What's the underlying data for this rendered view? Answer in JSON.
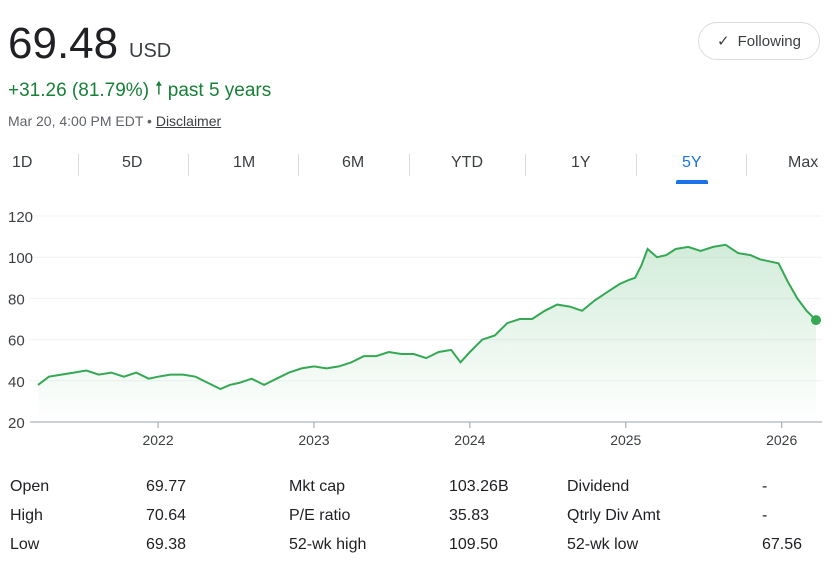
{
  "header": {
    "price": "69.48",
    "currency": "USD",
    "change": "+31.26 (81.79%)",
    "change_period": "past 5 years",
    "timestamp": "Mar 20, 4:00 PM EDT",
    "separator": "•",
    "disclaimer": "Disclaimer",
    "follow_label": "Following",
    "arrow_icon": "arrow-up-icon",
    "check_icon": "checkmark-icon",
    "accent_color": "#188038",
    "tab_accent_color": "#1a73e8"
  },
  "tabs": [
    {
      "label": "1D"
    },
    {
      "label": "5D"
    },
    {
      "label": "1M"
    },
    {
      "label": "6M"
    },
    {
      "label": "YTD"
    },
    {
      "label": "1Y"
    },
    {
      "label": "5Y",
      "active": true
    },
    {
      "label": "Max"
    }
  ],
  "chart_data": {
    "type": "area",
    "y_ticks": [
      "120",
      "100",
      "80",
      "60",
      "40",
      "20"
    ],
    "x_ticks": [
      "2022",
      "2023",
      "2024",
      "2025",
      "2026"
    ],
    "ylim": [
      20,
      120
    ],
    "xlim": [
      2021.23,
      2026.22
    ],
    "grid": true,
    "line_color": "#34a853",
    "series": [
      {
        "x": [
          2021.23,
          2021.3,
          2021.38,
          2021.46,
          2021.54,
          2021.62,
          2021.7,
          2021.78,
          2021.86,
          2021.94,
          2022.0,
          2022.08,
          2022.16,
          2022.24,
          2022.32,
          2022.4,
          2022.46,
          2022.52,
          2022.6,
          2022.68,
          2022.76,
          2022.84,
          2022.92,
          2023.0,
          2023.08,
          2023.16,
          2023.24,
          2023.32,
          2023.4,
          2023.48,
          2023.56,
          2023.64,
          2023.72,
          2023.8,
          2023.88,
          2023.94,
          2024.0,
          2024.08,
          2024.16,
          2024.24,
          2024.32,
          2024.4,
          2024.48,
          2024.56,
          2024.64,
          2024.72,
          2024.8,
          2024.88,
          2024.96,
          2025.02,
          2025.06,
          2025.1,
          2025.14,
          2025.2,
          2025.26,
          2025.32,
          2025.4,
          2025.48,
          2025.56,
          2025.64,
          2025.72,
          2025.8,
          2025.86,
          2025.92,
          2025.98,
          2026.04,
          2026.1,
          2026.16,
          2026.22
        ],
        "y": [
          38,
          42,
          43,
          44,
          45,
          43,
          44,
          42,
          44,
          41,
          42,
          43,
          43,
          42,
          39,
          36,
          38,
          39,
          41,
          38,
          41,
          44,
          46,
          47,
          46,
          47,
          49,
          52,
          52,
          54,
          53,
          53,
          51,
          54,
          55,
          49,
          54,
          60,
          62,
          68,
          70,
          70,
          74,
          77,
          76,
          74,
          79,
          83,
          87,
          89,
          90,
          96,
          104,
          100,
          101,
          104,
          105,
          103,
          105,
          106,
          102,
          101,
          99,
          98,
          97,
          88,
          80,
          74,
          69.48
        ]
      }
    ]
  },
  "stats": [
    [
      {
        "label": "Open",
        "value": "69.77"
      },
      {
        "label": "Mkt cap",
        "value": "103.26B"
      },
      {
        "label": "Dividend",
        "value": "-"
      }
    ],
    [
      {
        "label": "High",
        "value": "70.64"
      },
      {
        "label": "P/E ratio",
        "value": "35.83"
      },
      {
        "label": "Qtrly Div Amt",
        "value": "-"
      }
    ],
    [
      {
        "label": "Low",
        "value": "69.38"
      },
      {
        "label": "52-wk high",
        "value": "109.50"
      },
      {
        "label": "52-wk low",
        "value": "67.56"
      }
    ]
  ]
}
